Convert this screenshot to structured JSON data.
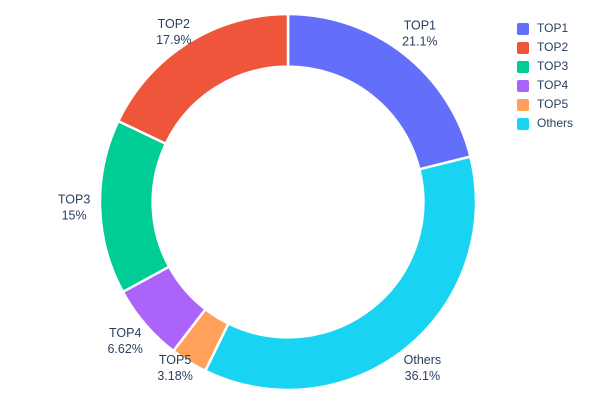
{
  "chart_data": {
    "type": "pie",
    "title": "",
    "hole": 0.72,
    "start_angle_deg": 0,
    "direction": "clockwise",
    "text_color": "#2a3f5f",
    "slices": [
      {
        "label": "TOP1",
        "value": 21.1,
        "pct_text": "21.1%",
        "color": "#636EFA"
      },
      {
        "label": "TOP2",
        "value": 17.9,
        "pct_text": "17.9%",
        "color": "#EF553B"
      },
      {
        "label": "TOP3",
        "value": 15,
        "pct_text": "15%",
        "color": "#00CC96"
      },
      {
        "label": "TOP4",
        "value": 6.62,
        "pct_text": "6.62%",
        "color": "#AB63FA"
      },
      {
        "label": "TOP5",
        "value": 3.18,
        "pct_text": "3.18%",
        "color": "#FFA15A"
      },
      {
        "label": "Others",
        "value": 36.1,
        "pct_text": "36.1%",
        "color": "#19D3F3"
      }
    ],
    "clockwise_order": [
      "TOP1",
      "Others",
      "TOP5",
      "TOP4",
      "TOP3",
      "TOP2"
    ],
    "legend": {
      "position": "right",
      "entries": [
        "TOP1",
        "TOP2",
        "TOP3",
        "TOP4",
        "TOP5",
        "Others"
      ]
    }
  }
}
